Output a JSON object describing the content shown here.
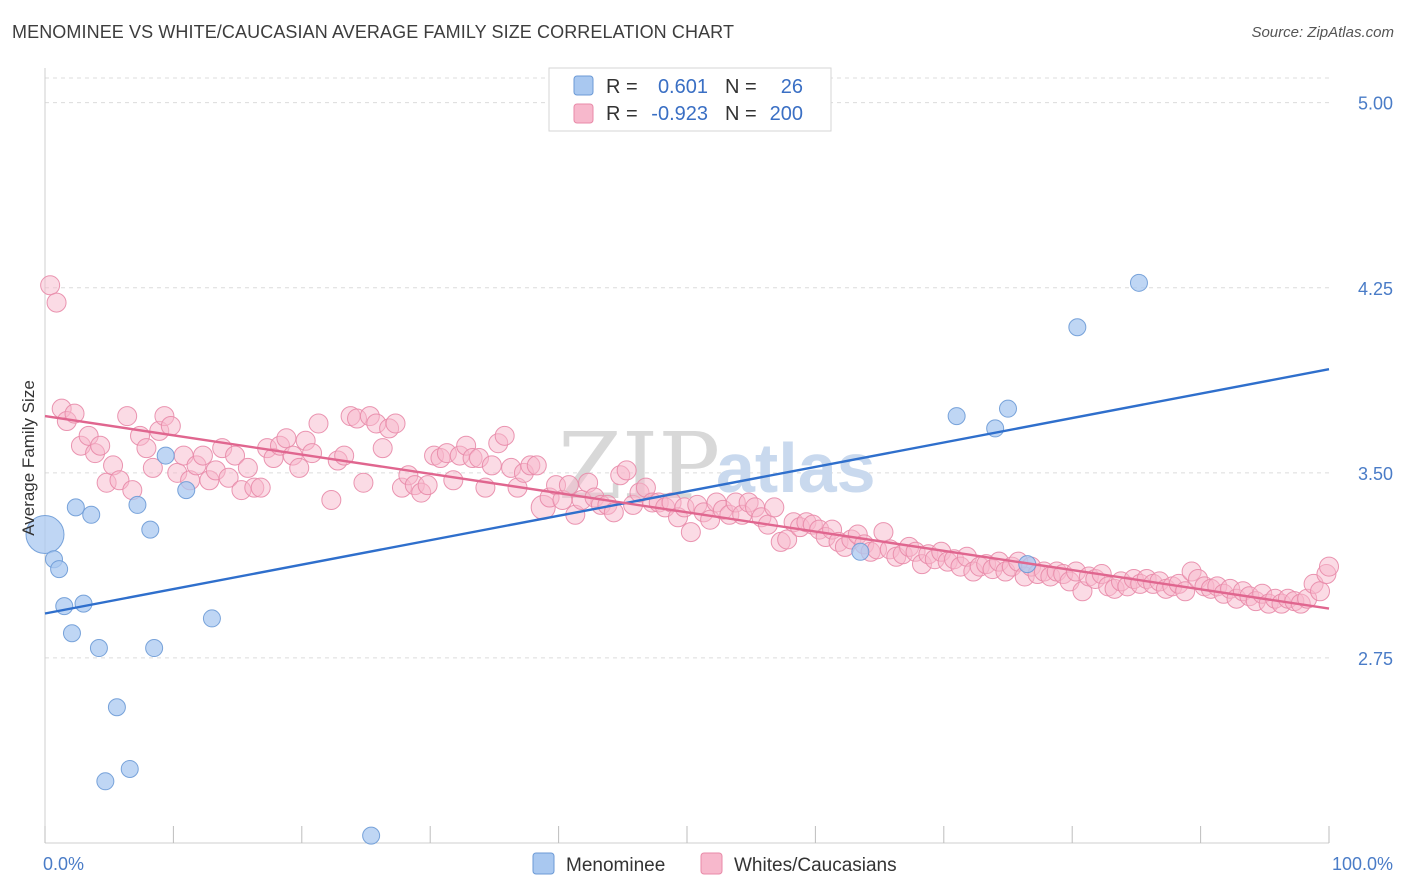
{
  "title": "MENOMINEE VS WHITE/CAUCASIAN AVERAGE FAMILY SIZE CORRELATION CHART",
  "source": "Source: ZipAtlas.com",
  "watermark": {
    "zip": "ZIP",
    "atlas": "atlas"
  },
  "legend": {
    "rows": [
      {
        "r_label": "R =",
        "r_value": "0.601",
        "n_label": "N =",
        "n_value": "26",
        "color": "#a9c8f0",
        "stroke": "#6c9ad6"
      },
      {
        "r_label": "R =",
        "r_value": "-0.923",
        "n_label": "N =",
        "n_value": "200",
        "color": "#f7b8cc",
        "stroke": "#e88aa8"
      }
    ]
  },
  "bottom_legend": [
    {
      "label": "Menominee",
      "color": "#a9c8f0",
      "stroke": "#6c9ad6"
    },
    {
      "label": "Whites/Caucasians",
      "color": "#f7b8cc",
      "stroke": "#e88aa8"
    }
  ],
  "chart_data": {
    "type": "scatter",
    "xlabel": "",
    "ylabel": "Average Family Size",
    "xlim": [
      0,
      100
    ],
    "ylim": [
      2.0,
      5.1
    ],
    "x_tick_labels": [
      "0.0%",
      "100.0%"
    ],
    "y_ticks": [
      2.75,
      3.5,
      4.25,
      5.0
    ],
    "y_tick_labels": [
      "2.75",
      "3.50",
      "4.25",
      "5.00"
    ],
    "grid": "horizontal-dashed",
    "series": [
      {
        "name": "Menominee",
        "color": "#a9c8f0",
        "stroke": "#6c9ad6",
        "trend_color": "#2f6fcc",
        "trend": {
          "x0": 0,
          "y0": 2.93,
          "x1": 100,
          "y1": 3.92
        },
        "points": [
          {
            "x": 0.0,
            "y": 3.25,
            "big": true
          },
          {
            "x": 0.7,
            "y": 3.15
          },
          {
            "x": 1.1,
            "y": 3.11
          },
          {
            "x": 1.5,
            "y": 2.96
          },
          {
            "x": 2.1,
            "y": 2.85
          },
          {
            "x": 2.4,
            "y": 3.36
          },
          {
            "x": 3.0,
            "y": 2.97
          },
          {
            "x": 3.6,
            "y": 3.33
          },
          {
            "x": 4.2,
            "y": 2.79
          },
          {
            "x": 4.7,
            "y": 2.25
          },
          {
            "x": 5.6,
            "y": 2.55
          },
          {
            "x": 6.6,
            "y": 2.3
          },
          {
            "x": 7.2,
            "y": 3.37
          },
          {
            "x": 8.2,
            "y": 3.27
          },
          {
            "x": 8.5,
            "y": 2.79
          },
          {
            "x": 9.4,
            "y": 3.57
          },
          {
            "x": 11.0,
            "y": 3.43
          },
          {
            "x": 13.0,
            "y": 2.91
          },
          {
            "x": 25.4,
            "y": 2.03
          },
          {
            "x": 63.5,
            "y": 3.18
          },
          {
            "x": 71.0,
            "y": 3.73
          },
          {
            "x": 74.0,
            "y": 3.68
          },
          {
            "x": 75.0,
            "y": 3.76
          },
          {
            "x": 76.5,
            "y": 3.13
          },
          {
            "x": 80.4,
            "y": 4.09
          },
          {
            "x": 85.2,
            "y": 4.27
          }
        ]
      },
      {
        "name": "Whites/Caucasians",
        "color": "#f7b8cc",
        "stroke": "#e88aa8",
        "trend_color": "#e0668f",
        "trend": {
          "x0": 0,
          "y0": 3.73,
          "x1": 100,
          "y1": 2.95
        },
        "points": [
          {
            "x": 0.4,
            "y": 4.26
          },
          {
            "x": 0.9,
            "y": 4.19
          },
          {
            "x": 1.3,
            "y": 3.76
          },
          {
            "x": 1.7,
            "y": 3.71
          },
          {
            "x": 2.3,
            "y": 3.74
          },
          {
            "x": 2.8,
            "y": 3.61
          },
          {
            "x": 3.4,
            "y": 3.65
          },
          {
            "x": 3.9,
            "y": 3.58
          },
          {
            "x": 4.3,
            "y": 3.61
          },
          {
            "x": 4.8,
            "y": 3.46
          },
          {
            "x": 5.3,
            "y": 3.53
          },
          {
            "x": 5.8,
            "y": 3.47
          },
          {
            "x": 6.4,
            "y": 3.73
          },
          {
            "x": 6.8,
            "y": 3.43
          },
          {
            "x": 7.4,
            "y": 3.65
          },
          {
            "x": 7.9,
            "y": 3.6
          },
          {
            "x": 8.4,
            "y": 3.52
          },
          {
            "x": 8.9,
            "y": 3.67
          },
          {
            "x": 9.3,
            "y": 3.73
          },
          {
            "x": 9.8,
            "y": 3.69
          },
          {
            "x": 10.3,
            "y": 3.5
          },
          {
            "x": 10.8,
            "y": 3.57
          },
          {
            "x": 11.3,
            "y": 3.47
          },
          {
            "x": 11.8,
            "y": 3.53
          },
          {
            "x": 12.3,
            "y": 3.57
          },
          {
            "x": 12.8,
            "y": 3.47
          },
          {
            "x": 13.3,
            "y": 3.51
          },
          {
            "x": 13.8,
            "y": 3.6
          },
          {
            "x": 14.3,
            "y": 3.48
          },
          {
            "x": 14.8,
            "y": 3.57
          },
          {
            "x": 15.3,
            "y": 3.43
          },
          {
            "x": 15.8,
            "y": 3.52
          },
          {
            "x": 16.3,
            "y": 3.44
          },
          {
            "x": 16.8,
            "y": 3.44
          },
          {
            "x": 17.3,
            "y": 3.6
          },
          {
            "x": 17.8,
            "y": 3.56
          },
          {
            "x": 18.3,
            "y": 3.61
          },
          {
            "x": 18.8,
            "y": 3.64
          },
          {
            "x": 19.3,
            "y": 3.57
          },
          {
            "x": 19.8,
            "y": 3.52
          },
          {
            "x": 20.3,
            "y": 3.63
          },
          {
            "x": 20.8,
            "y": 3.58
          },
          {
            "x": 21.3,
            "y": 3.7
          },
          {
            "x": 22.3,
            "y": 3.39
          },
          {
            "x": 22.8,
            "y": 3.55
          },
          {
            "x": 23.3,
            "y": 3.57
          },
          {
            "x": 23.8,
            "y": 3.73
          },
          {
            "x": 24.3,
            "y": 3.72
          },
          {
            "x": 24.8,
            "y": 3.46
          },
          {
            "x": 25.3,
            "y": 3.73
          },
          {
            "x": 25.8,
            "y": 3.7
          },
          {
            "x": 26.3,
            "y": 3.6
          },
          {
            "x": 26.8,
            "y": 3.68
          },
          {
            "x": 27.3,
            "y": 3.7
          },
          {
            "x": 27.8,
            "y": 3.44
          },
          {
            "x": 28.3,
            "y": 3.49
          },
          {
            "x": 28.8,
            "y": 3.45
          },
          {
            "x": 29.3,
            "y": 3.42
          },
          {
            "x": 29.8,
            "y": 3.45
          },
          {
            "x": 30.3,
            "y": 3.57
          },
          {
            "x": 30.8,
            "y": 3.56
          },
          {
            "x": 31.3,
            "y": 3.58
          },
          {
            "x": 31.8,
            "y": 3.47
          },
          {
            "x": 32.3,
            "y": 3.57
          },
          {
            "x": 32.8,
            "y": 3.61
          },
          {
            "x": 33.3,
            "y": 3.56
          },
          {
            "x": 33.8,
            "y": 3.56
          },
          {
            "x": 34.3,
            "y": 3.44
          },
          {
            "x": 34.8,
            "y": 3.53
          },
          {
            "x": 35.3,
            "y": 3.62
          },
          {
            "x": 35.8,
            "y": 3.65
          },
          {
            "x": 36.3,
            "y": 3.52
          },
          {
            "x": 36.8,
            "y": 3.44
          },
          {
            "x": 37.3,
            "y": 3.5
          },
          {
            "x": 37.8,
            "y": 3.53
          },
          {
            "x": 38.3,
            "y": 3.53
          },
          {
            "x": 38.8,
            "y": 3.36,
            "big": true
          },
          {
            "x": 39.3,
            "y": 3.4
          },
          {
            "x": 39.8,
            "y": 3.45
          },
          {
            "x": 40.3,
            "y": 3.39
          },
          {
            "x": 40.8,
            "y": 3.45
          },
          {
            "x": 41.3,
            "y": 3.33
          },
          {
            "x": 41.8,
            "y": 3.39
          },
          {
            "x": 42.3,
            "y": 3.46
          },
          {
            "x": 42.8,
            "y": 3.4
          },
          {
            "x": 43.3,
            "y": 3.37
          },
          {
            "x": 43.8,
            "y": 3.37
          },
          {
            "x": 44.3,
            "y": 3.34
          },
          {
            "x": 44.8,
            "y": 3.49
          },
          {
            "x": 45.3,
            "y": 3.51
          },
          {
            "x": 45.8,
            "y": 3.37
          },
          {
            "x": 46.3,
            "y": 3.42
          },
          {
            "x": 46.8,
            "y": 3.44
          },
          {
            "x": 47.3,
            "y": 3.38
          },
          {
            "x": 47.8,
            "y": 3.38
          },
          {
            "x": 48.3,
            "y": 3.36
          },
          {
            "x": 48.8,
            "y": 3.38
          },
          {
            "x": 49.3,
            "y": 3.32
          },
          {
            "x": 49.8,
            "y": 3.36
          },
          {
            "x": 50.3,
            "y": 3.26
          },
          {
            "x": 50.8,
            "y": 3.37
          },
          {
            "x": 51.3,
            "y": 3.34
          },
          {
            "x": 51.8,
            "y": 3.31
          },
          {
            "x": 52.3,
            "y": 3.38
          },
          {
            "x": 52.8,
            "y": 3.35
          },
          {
            "x": 53.3,
            "y": 3.33
          },
          {
            "x": 53.8,
            "y": 3.38
          },
          {
            "x": 54.3,
            "y": 3.33
          },
          {
            "x": 54.8,
            "y": 3.38
          },
          {
            "x": 55.3,
            "y": 3.36
          },
          {
            "x": 55.8,
            "y": 3.32
          },
          {
            "x": 56.3,
            "y": 3.29
          },
          {
            "x": 56.8,
            "y": 3.36
          },
          {
            "x": 57.3,
            "y": 3.22
          },
          {
            "x": 57.8,
            "y": 3.23
          },
          {
            "x": 58.3,
            "y": 3.3
          },
          {
            "x": 58.8,
            "y": 3.28
          },
          {
            "x": 59.3,
            "y": 3.3
          },
          {
            "x": 59.8,
            "y": 3.29
          },
          {
            "x": 60.3,
            "y": 3.27
          },
          {
            "x": 60.8,
            "y": 3.24
          },
          {
            "x": 61.3,
            "y": 3.27
          },
          {
            "x": 61.8,
            "y": 3.22
          },
          {
            "x": 62.3,
            "y": 3.2
          },
          {
            "x": 62.8,
            "y": 3.23
          },
          {
            "x": 63.3,
            "y": 3.25
          },
          {
            "x": 63.8,
            "y": 3.21
          },
          {
            "x": 64.3,
            "y": 3.18
          },
          {
            "x": 64.8,
            "y": 3.19
          },
          {
            "x": 65.3,
            "y": 3.26
          },
          {
            "x": 65.8,
            "y": 3.19
          },
          {
            "x": 66.3,
            "y": 3.16
          },
          {
            "x": 66.8,
            "y": 3.17
          },
          {
            "x": 67.3,
            "y": 3.2
          },
          {
            "x": 67.8,
            "y": 3.18
          },
          {
            "x": 68.3,
            "y": 3.13
          },
          {
            "x": 68.8,
            "y": 3.17
          },
          {
            "x": 69.3,
            "y": 3.15
          },
          {
            "x": 69.8,
            "y": 3.18
          },
          {
            "x": 70.3,
            "y": 3.14
          },
          {
            "x": 70.8,
            "y": 3.15
          },
          {
            "x": 71.3,
            "y": 3.12
          },
          {
            "x": 71.8,
            "y": 3.16
          },
          {
            "x": 72.3,
            "y": 3.1
          },
          {
            "x": 72.8,
            "y": 3.12
          },
          {
            "x": 73.3,
            "y": 3.13
          },
          {
            "x": 73.8,
            "y": 3.11
          },
          {
            "x": 74.3,
            "y": 3.14
          },
          {
            "x": 74.8,
            "y": 3.1
          },
          {
            "x": 75.3,
            "y": 3.12
          },
          {
            "x": 75.8,
            "y": 3.14
          },
          {
            "x": 76.3,
            "y": 3.08
          },
          {
            "x": 76.8,
            "y": 3.12
          },
          {
            "x": 77.3,
            "y": 3.09
          },
          {
            "x": 77.8,
            "y": 3.1
          },
          {
            "x": 78.3,
            "y": 3.08
          },
          {
            "x": 78.8,
            "y": 3.1
          },
          {
            "x": 79.3,
            "y": 3.09
          },
          {
            "x": 79.8,
            "y": 3.06
          },
          {
            "x": 80.3,
            "y": 3.1
          },
          {
            "x": 80.8,
            "y": 3.02
          },
          {
            "x": 81.3,
            "y": 3.08
          },
          {
            "x": 81.8,
            "y": 3.07
          },
          {
            "x": 82.3,
            "y": 3.09
          },
          {
            "x": 82.8,
            "y": 3.04
          },
          {
            "x": 83.3,
            "y": 3.03
          },
          {
            "x": 83.8,
            "y": 3.06
          },
          {
            "x": 84.3,
            "y": 3.04
          },
          {
            "x": 84.8,
            "y": 3.07
          },
          {
            "x": 85.3,
            "y": 3.05
          },
          {
            "x": 85.8,
            "y": 3.07
          },
          {
            "x": 86.3,
            "y": 3.05
          },
          {
            "x": 86.8,
            "y": 3.06
          },
          {
            "x": 87.3,
            "y": 3.03
          },
          {
            "x": 87.8,
            "y": 3.04
          },
          {
            "x": 88.3,
            "y": 3.05
          },
          {
            "x": 88.8,
            "y": 3.02
          },
          {
            "x": 89.3,
            "y": 3.1
          },
          {
            "x": 89.8,
            "y": 3.07
          },
          {
            "x": 90.3,
            "y": 3.04
          },
          {
            "x": 90.8,
            "y": 3.03
          },
          {
            "x": 91.3,
            "y": 3.04
          },
          {
            "x": 91.8,
            "y": 3.01
          },
          {
            "x": 92.3,
            "y": 3.03
          },
          {
            "x": 92.8,
            "y": 2.99
          },
          {
            "x": 93.3,
            "y": 3.02
          },
          {
            "x": 93.8,
            "y": 3.0
          },
          {
            "x": 94.3,
            "y": 2.98
          },
          {
            "x": 94.8,
            "y": 3.01
          },
          {
            "x": 95.3,
            "y": 2.97
          },
          {
            "x": 95.8,
            "y": 2.99
          },
          {
            "x": 96.3,
            "y": 2.97
          },
          {
            "x": 96.8,
            "y": 2.99
          },
          {
            "x": 97.3,
            "y": 2.98
          },
          {
            "x": 97.8,
            "y": 2.97
          },
          {
            "x": 98.3,
            "y": 2.99
          },
          {
            "x": 98.8,
            "y": 3.05
          },
          {
            "x": 99.3,
            "y": 3.02
          },
          {
            "x": 99.8,
            "y": 3.09
          },
          {
            "x": 100.0,
            "y": 3.12
          }
        ]
      }
    ]
  }
}
